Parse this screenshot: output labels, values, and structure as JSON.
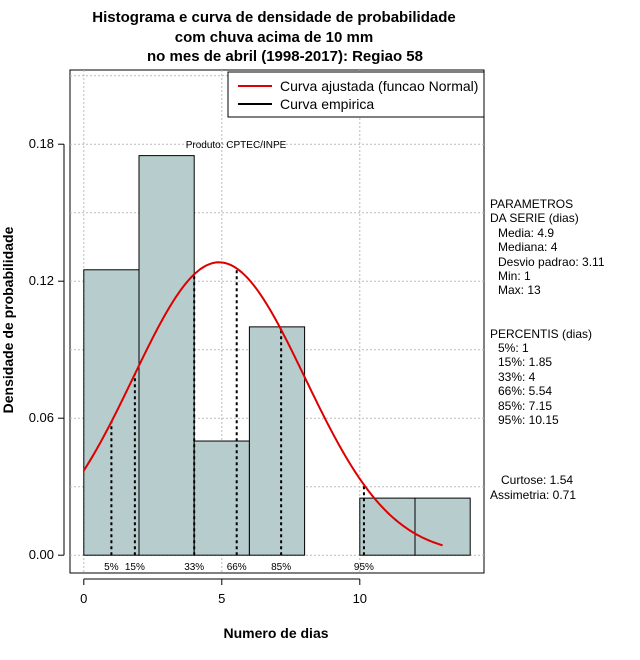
{
  "chart_data": {
    "type": "bar",
    "title_lines": [
      "Histograma e curva de densidade de probabilidade",
      "com chuva acima de 10 mm",
      "no mes de abril (1998-2017): Regiao 58"
    ],
    "xlabel": "Numero de dias",
    "ylabel": "Densidade de probabilidade",
    "xlim": [
      -0.5,
      14.5
    ],
    "ylim": [
      -0.0078,
      0.2125
    ],
    "x_ticks": [
      0,
      5,
      10
    ],
    "y_ticks": [
      0.0,
      0.06,
      0.12,
      0.18
    ],
    "y_tick_labels": [
      "0.00",
      "0.06",
      "0.12",
      "0.18"
    ],
    "grid": true,
    "histogram": {
      "bins": [
        {
          "x0": 0,
          "x1": 2,
          "density": 0.125
        },
        {
          "x0": 2,
          "x1": 4,
          "density": 0.175
        },
        {
          "x0": 4,
          "x1": 6,
          "density": 0.05
        },
        {
          "x0": 6,
          "x1": 8,
          "density": 0.1
        },
        {
          "x0": 8,
          "x1": 10,
          "density": 0.0
        },
        {
          "x0": 10,
          "x1": 12,
          "density": 0.025
        },
        {
          "x0": 12,
          "x1": 14,
          "density": 0.025
        }
      ],
      "fill_color": "#b7cccc"
    },
    "normal_curve": {
      "mean": 4.9,
      "sd": 3.11,
      "x_from": 0,
      "x_to": 13,
      "color": "#dd0000"
    },
    "percentile_lines": [
      {
        "label": "5%",
        "x": 1
      },
      {
        "label": "15%",
        "x": 1.85
      },
      {
        "label": "33%",
        "x": 4
      },
      {
        "label": "66%",
        "x": 5.54
      },
      {
        "label": "85%",
        "x": 7.15
      },
      {
        "label": "95%",
        "x": 10.15
      }
    ],
    "legend": {
      "placement": "top-right",
      "entries": [
        {
          "label": "Curva ajustada (funcao Normal)",
          "color": "#dd0000"
        },
        {
          "label": "Curva empirica",
          "color": "#000000"
        }
      ]
    },
    "product_label": "Produto: CPTEC/INPE",
    "side_panel": {
      "params_title": [
        "PARAMETROS",
        "DA SERIE (dias)"
      ],
      "params": [
        "Media: 4.9",
        "Mediana: 4",
        "Desvio padrao: 3.11",
        "Min: 1",
        "Max: 13"
      ],
      "percentis_title": "PERCENTIS (dias)",
      "percentis": [
        "5%: 1",
        "15%: 1.85",
        "33%: 4",
        "66%: 5.54",
        "85%: 7.15",
        "95%: 10.15"
      ],
      "shape": [
        "Curtose: 1.54",
        "Assimetria: 0.71"
      ]
    }
  }
}
